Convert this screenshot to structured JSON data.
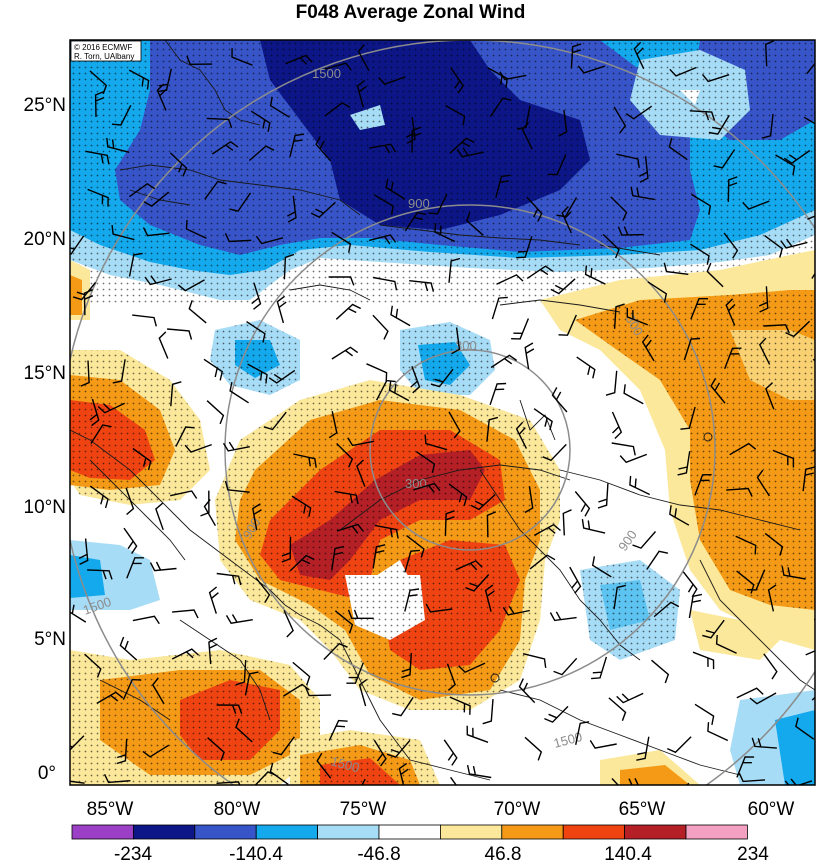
{
  "title": "F048 Average Zonal Wind",
  "credit": {
    "line1": "© 2016 ECMWF",
    "line2": "R. Torn, UAlbany"
  },
  "latitude_labels": [
    "25°N",
    "20°N",
    "15°N",
    "10°N",
    "5°N",
    "0°"
  ],
  "longitude_labels": [
    "85°W",
    "80°W",
    "75°W",
    "70°W",
    "65°W",
    "60°W"
  ],
  "ring_labels": [
    "1500",
    "900",
    "300",
    "300",
    "900",
    "1500",
    "1500",
    "900",
    "1500",
    "300"
  ],
  "colorbar": {
    "labels": [
      "-234",
      "-140.4",
      "-46.8",
      "46.8",
      "140.4",
      "234"
    ],
    "colors": [
      "#9b3fc6",
      "#0c1686",
      "#3755c9",
      "#13a9ec",
      "#a7dcf6",
      "#ffffff",
      "#fbe89a",
      "#f59a16",
      "#ef4412",
      "#b42026",
      "#f3a0c3"
    ]
  },
  "fill_colors": {
    "strong_easterly": "#0c1686",
    "easterly": "#3755c9",
    "moderate_easterly": "#13a9ec",
    "weak_easterly": "#a7dcf6",
    "near_zero": "#ffffff",
    "weak_westerly": "#fbe89a",
    "moderate_westerly": "#f59a16",
    "westerly": "#ef4412",
    "strong_westerly": "#b42026"
  }
}
